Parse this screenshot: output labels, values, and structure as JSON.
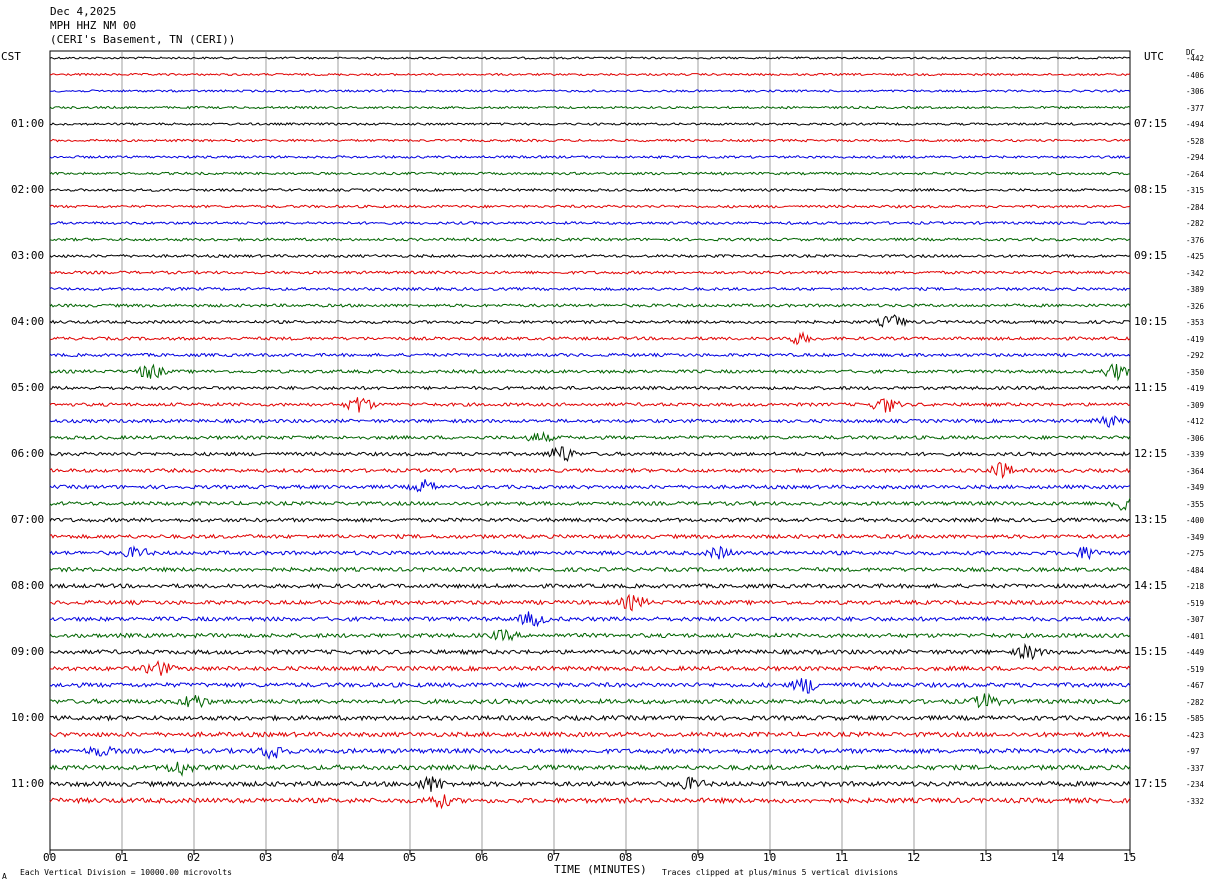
{
  "header": {
    "date": "Dec 4,2025",
    "station": "MPH HHZ NM 00",
    "location": "(CERI's Basement, TN (CERI))"
  },
  "left_axis_title": "CST",
  "right_axis_title": "UTC",
  "dc_title": "DC",
  "footer": {
    "left": "Each Vertical Division = 10000.00 microvolts",
    "xlabel": "TIME (MINUTES)",
    "right": "Traces clipped at plus/minus 5 vertical divisions",
    "corner": "A"
  },
  "chart_data": {
    "type": "line",
    "title": "MPH HHZ NM 00",
    "xlabel": "TIME (MINUTES)",
    "xlim": [
      0,
      15
    ],
    "x_ticks": [
      "00",
      "01",
      "02",
      "03",
      "04",
      "05",
      "06",
      "07",
      "08",
      "09",
      "10",
      "11",
      "12",
      "13",
      "14",
      "15"
    ],
    "left_hour_labels": [
      "01:00",
      "02:00",
      "03:00",
      "04:00",
      "05:00",
      "06:00",
      "07:00",
      "08:00",
      "09:00",
      "10:00",
      "11:00"
    ],
    "right_hour_labels": [
      "07:15",
      "08:15",
      "09:15",
      "10:15",
      "11:15",
      "12:15",
      "13:15",
      "14:15",
      "15:15",
      "16:15",
      "17:15"
    ],
    "trace_colors": [
      "#000000",
      "#e00000",
      "#0000e0",
      "#006400"
    ],
    "dc_offsets": [
      "-442",
      "-406",
      "-306",
      "-377",
      "-494",
      "-528",
      "-294",
      "-264",
      "-315",
      "-284",
      "-282",
      "-376",
      "-425",
      "-342",
      "-389",
      "-326",
      "-353",
      "-419",
      "-292",
      "-350",
      "-419",
      "-309",
      "-412",
      "-306",
      "-339",
      "-364",
      "-349",
      "-355",
      "-400",
      "-349",
      "-275",
      "-484",
      "-218",
      "-519",
      "-307",
      "-401",
      "-449",
      "-519",
      "-467",
      "-282",
      "-585",
      "-423",
      "-97",
      "-337",
      "-234",
      "-332"
    ],
    "events": [
      {
        "trace": 19,
        "minute": 1.4,
        "amp": 0.9
      },
      {
        "trace": 16,
        "minute": 11.7,
        "amp": 0.8
      },
      {
        "trace": 17,
        "minute": 10.4,
        "amp": 0.6
      },
      {
        "trace": 19,
        "minute": 14.8,
        "amp": 0.9
      },
      {
        "trace": 21,
        "minute": 4.3,
        "amp": 1.0
      },
      {
        "trace": 21,
        "minute": 11.6,
        "amp": 0.9
      },
      {
        "trace": 22,
        "minute": 14.7,
        "amp": 0.6
      },
      {
        "trace": 23,
        "minute": 6.8,
        "amp": 0.5
      },
      {
        "trace": 24,
        "minute": 7.1,
        "amp": 1.0
      },
      {
        "trace": 25,
        "minute": 13.2,
        "amp": 0.9
      },
      {
        "trace": 26,
        "minute": 5.2,
        "amp": 0.7
      },
      {
        "trace": 27,
        "minute": 14.9,
        "amp": 1.0
      },
      {
        "trace": 30,
        "minute": 1.2,
        "amp": 0.6
      },
      {
        "trace": 30,
        "minute": 9.3,
        "amp": 0.6
      },
      {
        "trace": 30,
        "minute": 14.4,
        "amp": 0.7
      },
      {
        "trace": 33,
        "minute": 8.1,
        "amp": 0.8
      },
      {
        "trace": 34,
        "minute": 6.7,
        "amp": 0.8
      },
      {
        "trace": 35,
        "minute": 6.3,
        "amp": 0.5
      },
      {
        "trace": 36,
        "minute": 13.6,
        "amp": 0.8
      },
      {
        "trace": 37,
        "minute": 1.5,
        "amp": 0.8
      },
      {
        "trace": 38,
        "minute": 10.5,
        "amp": 0.9
      },
      {
        "trace": 39,
        "minute": 2.0,
        "amp": 0.8
      },
      {
        "trace": 39,
        "minute": 13.0,
        "amp": 0.8
      },
      {
        "trace": 42,
        "minute": 3.1,
        "amp": 0.9
      },
      {
        "trace": 42,
        "minute": 0.7,
        "amp": 0.5
      },
      {
        "trace": 43,
        "minute": 1.8,
        "amp": 0.8
      },
      {
        "trace": 44,
        "minute": 5.3,
        "amp": 0.8
      },
      {
        "trace": 44,
        "minute": 8.9,
        "amp": 0.6
      },
      {
        "trace": 45,
        "minute": 5.4,
        "amp": 0.7
      }
    ]
  }
}
